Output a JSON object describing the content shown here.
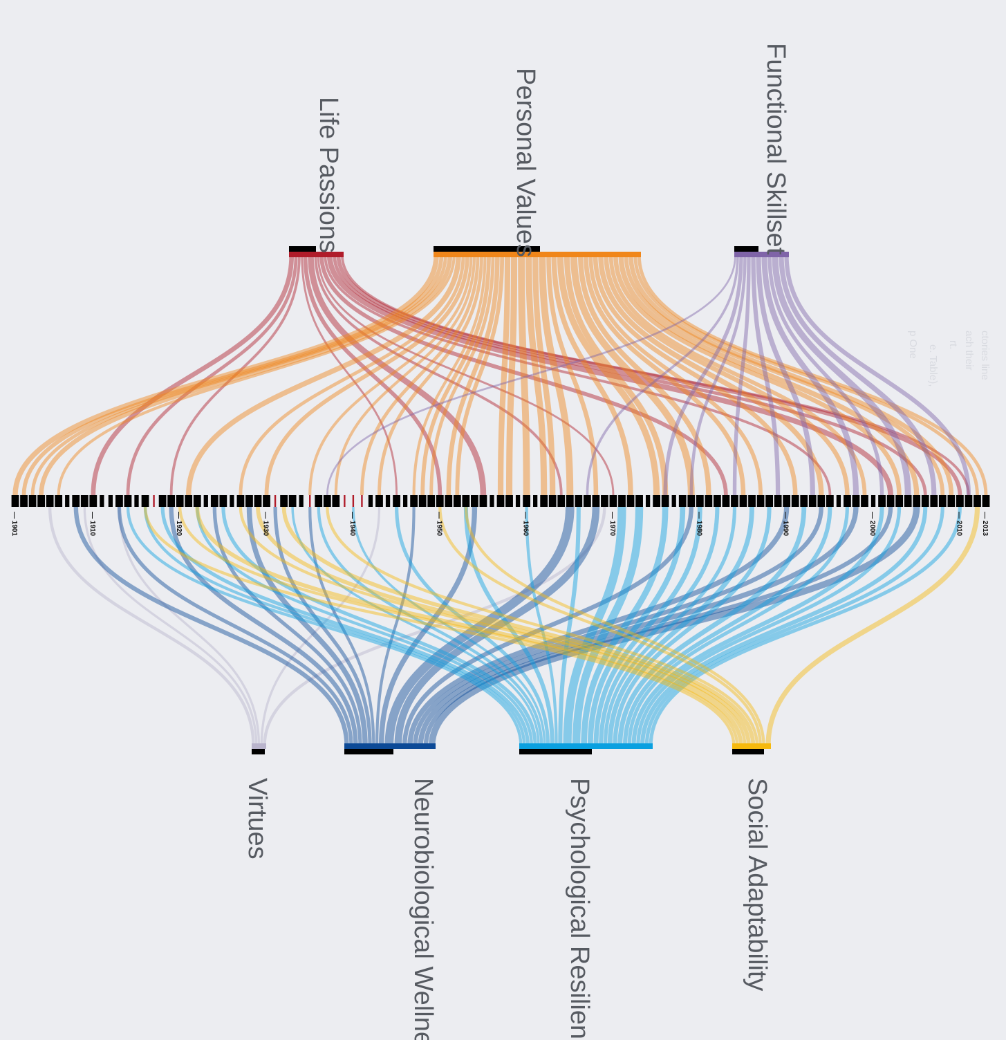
{
  "colors": {
    "background": "#ecedf1",
    "label_gray": "#565a61",
    "timeline_block": "#000000",
    "highlight_year": "#b01c2a",
    "life_passions": "#b01c2a",
    "personal_values": "#f0861a",
    "functional_skillset": "#7f64a8",
    "virtues": "#b9b4cc",
    "neurobiological_wellness": "#0c4a97",
    "psychological_resilience": "#0aa0e0",
    "social_adaptability": "#f6b90d"
  },
  "timeline": {
    "start_year": 1901,
    "end_year": 2013,
    "tick_labels": [
      "1901",
      "1910",
      "1920",
      "1930",
      "1940",
      "1950",
      "1960",
      "1970",
      "1980",
      "1990",
      "2000",
      "2010",
      "2013"
    ],
    "highlight_years": [
      1917,
      1931,
      1935,
      1939,
      1940,
      1941
    ]
  },
  "top_categories": [
    {
      "id": "life_passions",
      "label": "Life Passions"
    },
    {
      "id": "personal_values",
      "label": "Personal Values"
    },
    {
      "id": "functional_skillset",
      "label": "Functional Skillset"
    }
  ],
  "bottom_categories": [
    {
      "id": "virtues",
      "label": "Virtues"
    },
    {
      "id": "neurobiological_wellness",
      "label": "Neurobiological Wellness"
    },
    {
      "id": "psychological_resilience",
      "label": "Psychological Resilience"
    },
    {
      "id": "social_adaptability",
      "label": "Social Adaptability"
    }
  ],
  "faint_note": [
    "ctories line",
    "ach their",
    "rt.",
    "e. Table),",
    "p One"
  ]
}
